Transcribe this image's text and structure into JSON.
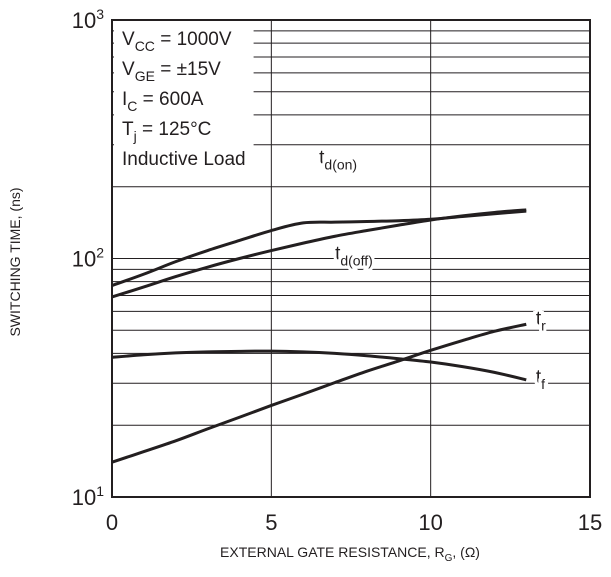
{
  "chart_data": {
    "type": "line",
    "title": "",
    "xlabel_main": "EXTERNAL GATE RESISTANCE, R",
    "xlabel_sub": "G",
    "xlabel_unit": ", (Ω)",
    "ylabel": "SWITCHING TIME, (ns)",
    "x_scale": "linear",
    "y_scale": "log",
    "xlim": [
      0,
      15
    ],
    "ylim": [
      10,
      1000
    ],
    "xticks": [
      0,
      5,
      10,
      15
    ],
    "yticks": [
      {
        "value": 10,
        "base": "10",
        "exp": "1"
      },
      {
        "value": 100,
        "base": "10",
        "exp": "2"
      },
      {
        "value": 1000,
        "base": "10",
        "exp": "3"
      }
    ],
    "grid": true,
    "conditions": [
      {
        "base": "V",
        "sub": "CC",
        "rest": " = 1000V"
      },
      {
        "base": "V",
        "sub": "GE",
        "rest": " = ±15V"
      },
      {
        "base": "I",
        "sub": "C",
        "rest": " = 600A"
      },
      {
        "base": "T",
        "sub": "j",
        "rest": " = 125°C"
      },
      {
        "base": "Inductive Load",
        "sub": "",
        "rest": ""
      }
    ],
    "series": [
      {
        "name": "t_d(on)",
        "label_base": "t",
        "label_sub": "d(on)",
        "label_at": [
          6.5,
          250
        ],
        "x": [
          0,
          1,
          2,
          3,
          4,
          5,
          6,
          7,
          8,
          9,
          10,
          11,
          12,
          13
        ],
        "y": [
          77,
          86,
          97,
          108,
          119,
          131,
          141,
          142,
          143,
          144,
          146,
          150,
          154,
          158
        ]
      },
      {
        "name": "t_d(off)",
        "label_base": "t",
        "label_sub": "d(off)",
        "label_at": [
          7.0,
          99
        ],
        "x": [
          0,
          1,
          2,
          3,
          4,
          5,
          6,
          7,
          8,
          9,
          10,
          11,
          12,
          13
        ],
        "y": [
          69,
          76,
          84,
          92,
          100,
          108,
          116,
          124,
          131,
          138,
          145,
          151,
          156,
          160
        ]
      },
      {
        "name": "t_r",
        "label_base": "t",
        "label_sub": "r",
        "label_at": [
          13.3,
          53
        ],
        "x": [
          0,
          1,
          2,
          3,
          4,
          5,
          6,
          7,
          8,
          9,
          10,
          11,
          12,
          13
        ],
        "y": [
          14,
          15.5,
          17.2,
          19.3,
          21.6,
          24.2,
          27,
          30.2,
          33.7,
          37.2,
          41.2,
          45.3,
          49.5,
          53
        ]
      },
      {
        "name": "t_f",
        "label_base": "t",
        "label_sub": "f",
        "label_at": [
          13.3,
          30
        ],
        "x": [
          0,
          1,
          2,
          3,
          4,
          5,
          6,
          7,
          8,
          9,
          10,
          11,
          12,
          13
        ],
        "y": [
          38.5,
          39.5,
          40.2,
          40.6,
          40.8,
          40.9,
          40.6,
          40,
          39.1,
          38,
          36.8,
          35.2,
          33.3,
          31
        ]
      }
    ]
  }
}
